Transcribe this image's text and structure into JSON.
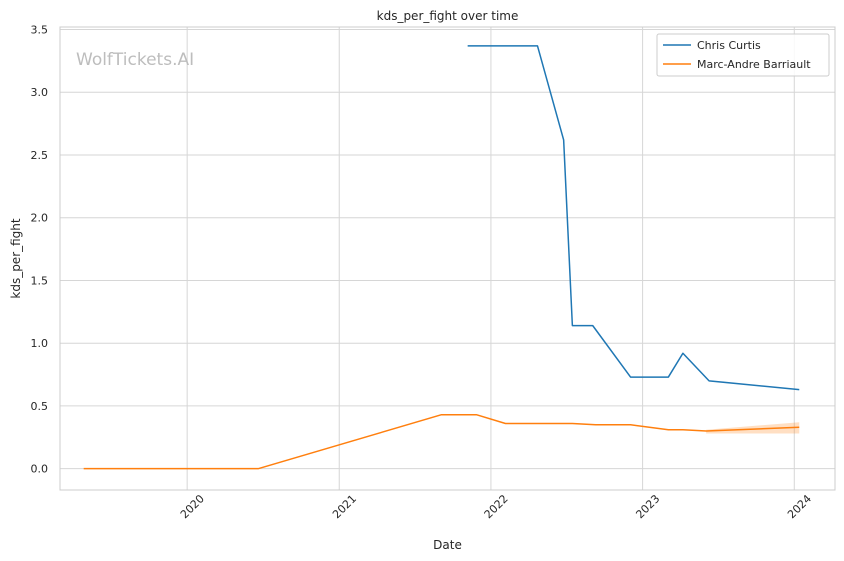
{
  "chart_data": {
    "type": "line",
    "title": "kds_per_fight over time",
    "xlabel": "Date",
    "ylabel": "kds_per_fight",
    "watermark": "WolfTickets.AI",
    "xlim": [
      "2019-03-01",
      "2024-04-08"
    ],
    "ylim": [
      -0.17,
      3.52
    ],
    "x_ticks": [
      {
        "date": "2020-01-01",
        "label": "2020"
      },
      {
        "date": "2021-01-01",
        "label": "2021"
      },
      {
        "date": "2022-01-01",
        "label": "2022"
      },
      {
        "date": "2023-01-01",
        "label": "2023"
      },
      {
        "date": "2024-01-01",
        "label": "2024"
      }
    ],
    "y_ticks": [
      0.0,
      0.5,
      1.0,
      1.5,
      2.0,
      2.5,
      3.0,
      3.5
    ],
    "y_tick_labels": [
      "0.0",
      "0.5",
      "1.0",
      "1.5",
      "2.0",
      "2.5",
      "3.0",
      "3.5"
    ],
    "grid": true,
    "legend_position": "top-right",
    "series": [
      {
        "name": "Chris Curtis",
        "color": "#1f77b4",
        "points": [
          {
            "date": "2021-11-06",
            "value": 3.37
          },
          {
            "date": "2022-04-23",
            "value": 3.37
          },
          {
            "date": "2022-06-25",
            "value": 2.62
          },
          {
            "date": "2022-07-16",
            "value": 1.14
          },
          {
            "date": "2022-09-03",
            "value": 1.14
          },
          {
            "date": "2022-12-03",
            "value": 0.73
          },
          {
            "date": "2023-03-04",
            "value": 0.73
          },
          {
            "date": "2023-04-08",
            "value": 0.92
          },
          {
            "date": "2023-06-10",
            "value": 0.7
          },
          {
            "date": "2024-01-13",
            "value": 0.63
          }
        ]
      },
      {
        "name": "Marc-Andre Barriault",
        "color": "#ff7f0e",
        "points": [
          {
            "date": "2019-04-27",
            "value": 0.0
          },
          {
            "date": "2020-06-20",
            "value": 0.0
          },
          {
            "date": "2021-09-04",
            "value": 0.43
          },
          {
            "date": "2021-11-27",
            "value": 0.43
          },
          {
            "date": "2022-02-05",
            "value": 0.36
          },
          {
            "date": "2022-07-16",
            "value": 0.36
          },
          {
            "date": "2022-09-10",
            "value": 0.35
          },
          {
            "date": "2022-12-03",
            "value": 0.35
          },
          {
            "date": "2023-03-04",
            "value": 0.31
          },
          {
            "date": "2023-04-08",
            "value": 0.31
          },
          {
            "date": "2023-06-03",
            "value": 0.3
          },
          {
            "date": "2024-01-13",
            "value": 0.33
          }
        ],
        "band": [
          {
            "date": "2023-06-03",
            "low": 0.28,
            "high": 0.31
          },
          {
            "date": "2024-01-13",
            "low": 0.28,
            "high": 0.37
          }
        ]
      }
    ]
  }
}
